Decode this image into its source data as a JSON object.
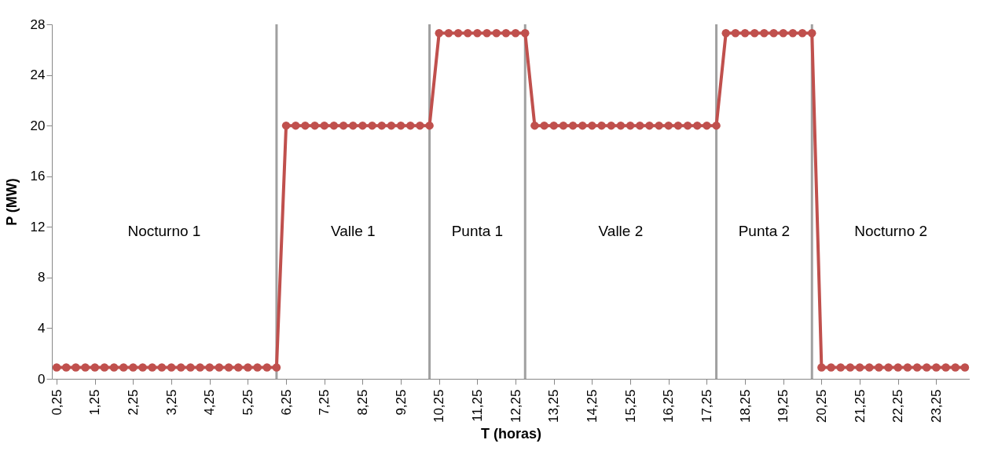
{
  "chart_data": {
    "type": "line",
    "xlabel": "T (horas)",
    "ylabel": "P (MW)",
    "x": [
      0.25,
      0.5,
      0.75,
      1,
      1.25,
      1.5,
      1.75,
      2,
      2.25,
      2.5,
      2.75,
      3,
      3.25,
      3.5,
      3.75,
      4,
      4.25,
      4.5,
      4.75,
      5,
      5.25,
      5.5,
      5.75,
      6,
      6.25,
      6.5,
      6.75,
      7,
      7.25,
      7.5,
      7.75,
      8,
      8.25,
      8.5,
      8.75,
      9,
      9.25,
      9.5,
      9.75,
      10,
      10.25,
      10.5,
      10.75,
      11,
      11.25,
      11.5,
      11.75,
      12,
      12.25,
      12.5,
      12.75,
      13,
      13.25,
      13.5,
      13.75,
      14,
      14.25,
      14.5,
      14.75,
      15,
      15.25,
      15.5,
      15.75,
      16,
      16.25,
      16.5,
      16.75,
      17,
      17.25,
      17.5,
      17.75,
      18,
      18.25,
      18.5,
      18.75,
      19,
      19.25,
      19.5,
      19.75,
      20,
      20.25,
      20.5,
      20.75,
      21,
      21.25,
      21.5,
      21.75,
      22,
      22.25,
      22.5,
      22.75,
      23,
      23.25,
      23.5,
      23.75,
      24
    ],
    "series": [
      {
        "color": "#c0504d",
        "values": [
          0.9,
          0.9,
          0.9,
          0.9,
          0.9,
          0.9,
          0.9,
          0.9,
          0.9,
          0.9,
          0.9,
          0.9,
          0.9,
          0.9,
          0.9,
          0.9,
          0.9,
          0.9,
          0.9,
          0.9,
          0.9,
          0.9,
          0.9,
          0.9,
          20,
          20,
          20,
          20,
          20,
          20,
          20,
          20,
          20,
          20,
          20,
          20,
          20,
          20,
          20,
          20,
          27.3,
          27.3,
          27.3,
          27.3,
          27.3,
          27.3,
          27.3,
          27.3,
          27.3,
          27.3,
          20,
          20,
          20,
          20,
          20,
          20,
          20,
          20,
          20,
          20,
          20,
          20,
          20,
          20,
          20,
          20,
          20,
          20,
          20,
          20,
          27.3,
          27.3,
          27.3,
          27.3,
          27.3,
          27.3,
          27.3,
          27.3,
          27.3,
          27.3,
          0.9,
          0.9,
          0.9,
          0.9,
          0.9,
          0.9,
          0.9,
          0.9,
          0.9,
          0.9,
          0.9,
          0.9,
          0.9,
          0.9,
          0.9,
          0.9
        ]
      }
    ],
    "xlim": [
      0.125,
      24.125
    ],
    "xticks": [
      {
        "value": 0.25,
        "label": "0,25"
      },
      {
        "value": 1.25,
        "label": "1,25"
      },
      {
        "value": 2.25,
        "label": "2,25"
      },
      {
        "value": 3.25,
        "label": "3,25"
      },
      {
        "value": 4.25,
        "label": "4,25"
      },
      {
        "value": 5.25,
        "label": "5,25"
      },
      {
        "value": 6.25,
        "label": "6,25"
      },
      {
        "value": 7.25,
        "label": "7,25"
      },
      {
        "value": 8.25,
        "label": "8,25"
      },
      {
        "value": 9.25,
        "label": "9,25"
      },
      {
        "value": 10.25,
        "label": "10,25"
      },
      {
        "value": 11.25,
        "label": "11,25"
      },
      {
        "value": 12.25,
        "label": "12,25"
      },
      {
        "value": 13.25,
        "label": "13,25"
      },
      {
        "value": 14.25,
        "label": "14,25"
      },
      {
        "value": 15.25,
        "label": "15,25"
      },
      {
        "value": 16.25,
        "label": "16,25"
      },
      {
        "value": 17.25,
        "label": "17,25"
      },
      {
        "value": 18.25,
        "label": "18,25"
      },
      {
        "value": 19.25,
        "label": "19,25"
      },
      {
        "value": 20.25,
        "label": "20,25"
      },
      {
        "value": 21.25,
        "label": "21,25"
      },
      {
        "value": 22.25,
        "label": "22,25"
      },
      {
        "value": 23.25,
        "label": "23,25"
      }
    ],
    "ylim": [
      0,
      28
    ],
    "yticks": [
      0,
      4,
      8,
      12,
      16,
      20,
      24,
      28
    ],
    "marker": "circle",
    "ref_lines": [
      {
        "axis": "x",
        "value": 6,
        "color": "#a0a0a0"
      },
      {
        "axis": "x",
        "value": 10,
        "color": "#a0a0a0"
      },
      {
        "axis": "x",
        "value": 12.5,
        "color": "#a0a0a0"
      },
      {
        "axis": "x",
        "value": 17.5,
        "color": "#a0a0a0"
      },
      {
        "axis": "x",
        "value": 20,
        "color": "#a0a0a0"
      }
    ],
    "annotations": [
      "Nocturno 1",
      "Valle 1",
      "Punta 1",
      "Valle 2",
      "Punta 2",
      "Nocturno 2"
    ]
  }
}
